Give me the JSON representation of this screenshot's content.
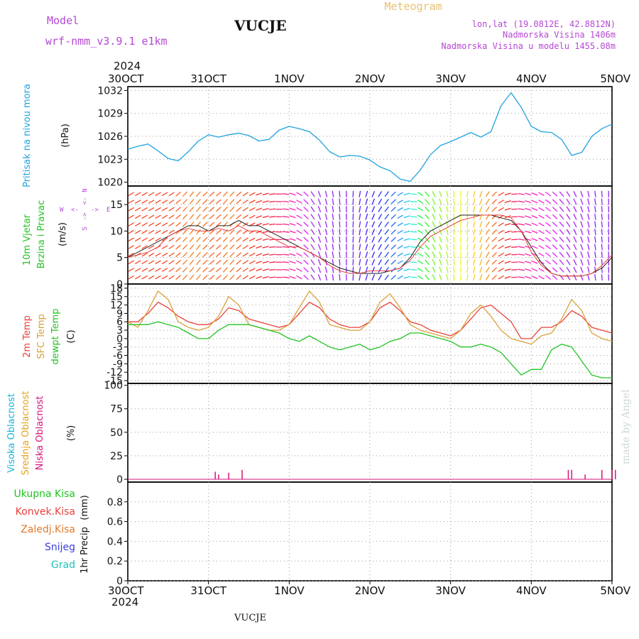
{
  "header": {
    "model_label": "Model",
    "model_name": "wrf-nmm_v3.9.1 e1km",
    "station": "VUCJE",
    "meteogram": "Meteogram",
    "lonlat": "lon,lat (19.0812E, 42.8812N)",
    "altitude": "Nadmorska Visina 1406m",
    "model_altitude": "Nadmorska Visina u modelu 1455.08m",
    "year": "2024",
    "footer_station": "VUCJE",
    "credit": "made by Angel"
  },
  "colors": {
    "pressure": "#1fa3e0",
    "temp2m": "#e8413c",
    "sfc_temp": "#d9a23a",
    "dewpt": "#22c322",
    "high_cloud": "#18b4dc",
    "mid_cloud": "#e8a317",
    "low_cloud": "#d4147a",
    "wind_label": "#22c322",
    "precip_total": "#22c322",
    "precip_conv": "#e8413c",
    "precip_frozen": "#e07a2c",
    "snow": "#3c3cdc",
    "hail": "#1cc0b8",
    "axis_label_purple": "#b548d4"
  },
  "chart_data": [
    {
      "type": "line",
      "panel": "pressure",
      "ylabel_name": "Pritisak na nivou mora",
      "unit": "(hPa)",
      "x_ticks": [
        "30OCT",
        "31OCT",
        "1NOV",
        "2NOV",
        "3NOV",
        "4NOV",
        "5NOV"
      ],
      "yticks": [
        1020,
        1023,
        1026,
        1029,
        1032
      ],
      "ylim": [
        1019.5,
        1032.5
      ],
      "grid": true,
      "series": [
        {
          "x": [
            0,
            3,
            6,
            9,
            12,
            15,
            18,
            21,
            24,
            27,
            30,
            33,
            36,
            39,
            42,
            45,
            48,
            51,
            54,
            57,
            60,
            63,
            66,
            69,
            72,
            75,
            78,
            81,
            84,
            87,
            90,
            93,
            96,
            99,
            102,
            105,
            108,
            111,
            114,
            117,
            120,
            123,
            126,
            129,
            132,
            135,
            138,
            141,
            144
          ],
          "values": [
            1024.3,
            1024.7,
            1025.0,
            1024.1,
            1023.1,
            1022.8,
            1024.0,
            1025.4,
            1026.2,
            1025.9,
            1026.2,
            1026.4,
            1026.1,
            1025.4,
            1025.6,
            1026.8,
            1027.3,
            1027.0,
            1026.6,
            1025.5,
            1024.0,
            1023.3,
            1023.5,
            1023.4,
            1022.9,
            1022.0,
            1021.5,
            1020.4,
            1020.1,
            1021.6,
            1023.6,
            1024.8,
            1025.3,
            1025.9,
            1026.5,
            1025.9,
            1026.6,
            1030.0,
            1031.7,
            1029.8,
            1027.3,
            1026.6,
            1026.5,
            1025.6,
            1023.5,
            1023.9,
            1026.0,
            1027.0,
            1027.6
          ]
        }
      ]
    },
    {
      "type": "line",
      "panel": "wind",
      "ylabel_name": "10m Vjetar",
      "ylabel_name2": "Brzina i Pravac",
      "unit": "(m/s)",
      "compass_n": "N",
      "compass_s": "S",
      "compass_e": "E",
      "compass_w": "W",
      "yticks": [
        0,
        5,
        10,
        15
      ],
      "ylim": [
        0,
        18.5
      ],
      "grid": true,
      "series": [
        {
          "values": [
            5,
            6,
            7,
            8,
            9,
            10,
            11,
            11,
            10,
            11,
            11,
            12,
            11,
            11,
            10,
            9,
            8,
            7,
            6,
            5,
            4,
            3,
            2.5,
            2,
            2,
            2,
            2.5,
            3,
            5,
            8,
            10,
            11,
            12,
            13,
            13,
            13,
            13,
            12.5,
            12,
            10,
            7,
            4,
            2,
            1.5,
            1.5,
            1.5,
            2,
            3,
            5
          ]
        },
        {
          "values": [
            5,
            5.5,
            6,
            7,
            9,
            10,
            10.5,
            10,
            10,
            10.5,
            10,
            11,
            10,
            10,
            9,
            8,
            7,
            7,
            6,
            5,
            3.5,
            2.5,
            2,
            2,
            2.5,
            2.5,
            2.5,
            3,
            4.5,
            7,
            9,
            10,
            11,
            12,
            12.5,
            13,
            13,
            13,
            12.5,
            10,
            6,
            3.5,
            2,
            1.5,
            1.5,
            1.5,
            2,
            3.5,
            5.5
          ]
        }
      ],
      "direction_deg": [
        240,
        240,
        240,
        240,
        240,
        230,
        220,
        220,
        230,
        230,
        220,
        230,
        240,
        250,
        260,
        270,
        280,
        300,
        320,
        340,
        350,
        355,
        0,
        10,
        20,
        30,
        40,
        60,
        80,
        120,
        150,
        160,
        170,
        180,
        190,
        200,
        220,
        240,
        260,
        280,
        290,
        300,
        310,
        320,
        330,
        340,
        350,
        355,
        0
      ]
    },
    {
      "type": "line",
      "panel": "temperature",
      "ylabel_name": "2m Temp",
      "ylabel_name2": "SFC Temp",
      "ylabel_name3": "dewpt Temp",
      "unit": "(C)",
      "yticks": [
        -15,
        -12,
        -9,
        -6,
        -3,
        0,
        3,
        6,
        9,
        12,
        15,
        18
      ],
      "ylim": [
        -16,
        19.5
      ],
      "grid": true,
      "series": [
        {
          "name": "2m Temp",
          "values": [
            6,
            6,
            9,
            13,
            11,
            8,
            6,
            5,
            5,
            7,
            11,
            10,
            7,
            6,
            5,
            4,
            5,
            9,
            13,
            11,
            7,
            5,
            4,
            4,
            6,
            11,
            13,
            10,
            6,
            5,
            3,
            2,
            1,
            3,
            7,
            11,
            12,
            9,
            6,
            0,
            0,
            4,
            4,
            6,
            10,
            8,
            4,
            3,
            2
          ]
        },
        {
          "name": "SFC Temp",
          "values": [
            6,
            4,
            10,
            17,
            14,
            6,
            4,
            3,
            4,
            8,
            15,
            12,
            5,
            4,
            3,
            3,
            5,
            11,
            17,
            13,
            5,
            4,
            3,
            3,
            6,
            13,
            16,
            11,
            5,
            3,
            2,
            1,
            0,
            3,
            9,
            12,
            8,
            3,
            0,
            -1,
            -2,
            1,
            2,
            7,
            14,
            10,
            2,
            0,
            -1
          ]
        },
        {
          "name": "dewpt Temp",
          "values": [
            5,
            5,
            5,
            6,
            5,
            4,
            2,
            0,
            0,
            3,
            5,
            5,
            5,
            4,
            3,
            2,
            0,
            -1,
            1,
            -1,
            -3,
            -4,
            -3,
            -2,
            -4,
            -3,
            -1,
            0,
            2,
            2,
            1,
            0,
            -1,
            -3,
            -3,
            -2,
            -3,
            -5,
            -9,
            -13,
            -11,
            -11,
            -4,
            -2,
            -3,
            -8,
            -13,
            -14,
            -14
          ]
        }
      ]
    },
    {
      "type": "bar",
      "panel": "cloud",
      "ylabel_name": "Visoka Oblacnost",
      "ylabel_name2": "Srednja Oblacnost",
      "ylabel_name3": "Niska Oblacnost",
      "unit": "(%)",
      "yticks": [
        0,
        25,
        50,
        75,
        100
      ],
      "ylim": [
        -3,
        102
      ],
      "grid": true,
      "series": [
        {
          "name": "Niska Oblacnost",
          "x": [
            26,
            27,
            30,
            34,
            131,
            132,
            136,
            141,
            144,
            145
          ],
          "values": [
            8,
            5,
            7,
            10,
            10,
            10,
            5,
            10,
            10,
            10
          ]
        }
      ]
    },
    {
      "type": "bar",
      "panel": "precip",
      "ylabel_name": "1hr Precip",
      "unit": "(mm)",
      "legend": [
        "Ukupna Kisa",
        "Konvek.Kisa",
        "Zaledj.Kisa",
        "Snijeg",
        "Grad"
      ],
      "yticks": [
        "0",
        "0.2",
        "0.4",
        "0.6",
        "0.8"
      ],
      "ylim": [
        0,
        1.0
      ],
      "grid": true,
      "values": []
    }
  ]
}
